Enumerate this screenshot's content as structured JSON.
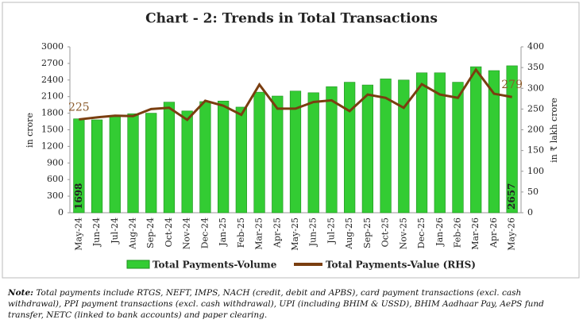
{
  "chart_data": {
    "type": "bar-line",
    "title": "Chart - 2: Trends in Total Transactions",
    "y_label": "in crore",
    "y2_label": "in ₹ lakh crore",
    "categories": [
      "May-24",
      "Jun-24",
      "Jul-24",
      "Aug-24",
      "Sep-24",
      "Oct-24",
      "Nov-24",
      "Dec-24",
      "Jan-25",
      "Feb-25",
      "Mar-25",
      "Apr-25",
      "May-25",
      "Jun-25",
      "Jul-25",
      "Aug-25",
      "Sep-25",
      "Oct-25",
      "Nov-25",
      "Dec-25",
      "Jan-26",
      "Feb-26",
      "Mar-26",
      "Apr-26",
      "May-26"
    ],
    "series": [
      {
        "name": "Total Payments-Volume",
        "color": "#33cc33",
        "type": "bar",
        "values": [
          1698,
          1680,
          1760,
          1790,
          1800,
          2000,
          1840,
          2010,
          2020,
          1910,
          2180,
          2110,
          2200,
          2170,
          2280,
          2360,
          2310,
          2420,
          2400,
          2530,
          2530,
          2360,
          2640,
          2570,
          2657
        ]
      },
      {
        "name": "Total Payments-Value (RHS)",
        "color": "#7a3e10",
        "type": "line",
        "axis": "y2",
        "values": [
          225,
          230,
          234,
          233,
          250,
          253,
          224,
          270,
          258,
          236,
          309,
          251,
          251,
          267,
          271,
          245,
          285,
          277,
          253,
          310,
          285,
          277,
          345,
          287,
          279
        ]
      }
    ],
    "ylim": [
      0,
      3000
    ],
    "yticks": [
      0,
      300,
      600,
      900,
      1200,
      1500,
      1800,
      2100,
      2400,
      2700,
      3000
    ],
    "y2lim": [
      0,
      400
    ],
    "y2ticks": [
      0,
      50,
      100,
      150,
      200,
      250,
      300,
      350,
      400
    ]
  },
  "note": {
    "label": "Note:",
    "text": " Total payments include RTGS, NEFT, IMPS, NACH (credit, debit and APBS), card payment transactions (excl. cash withdrawal), PPI payment transactions (excl. cash withdrawal), UPI (including BHIM & USSD), BHIM Aadhaar Pay, AePS fund transfer, NETC (linked to bank accounts) and paper clearing."
  }
}
